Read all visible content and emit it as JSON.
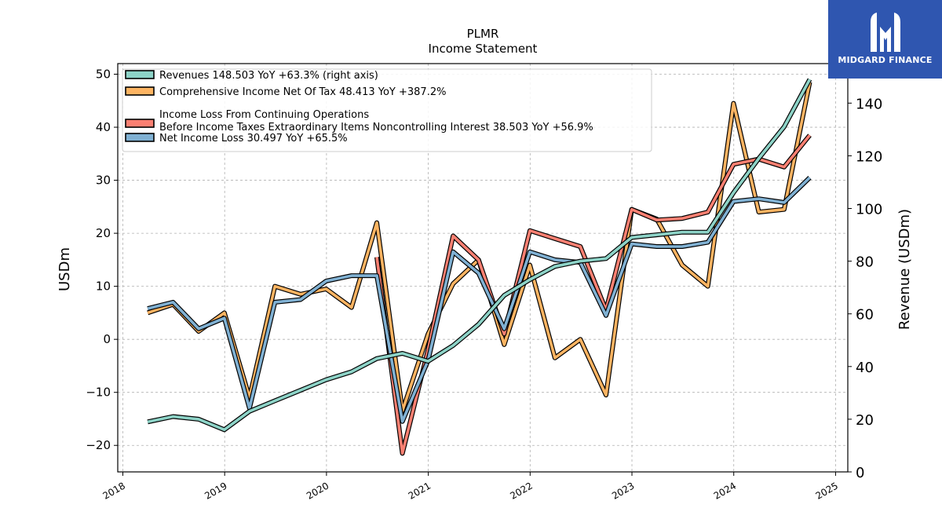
{
  "chart_data": {
    "type": "line",
    "title": "PLMR",
    "subtitle": "Income Statement",
    "ylabel_left": "USDm",
    "ylabel_right": "Revenue (USDm)",
    "ylim_left": [
      -25,
      52
    ],
    "ylim_right": [
      0,
      155
    ],
    "yticks_left": [
      -20,
      -10,
      0,
      10,
      20,
      30,
      40,
      50
    ],
    "yticks_right": [
      0,
      20,
      40,
      60,
      80,
      100,
      120,
      140
    ],
    "yticks_left_labels": [
      "−20",
      "−10",
      "0",
      "10",
      "20",
      "30",
      "40",
      "50"
    ],
    "yticks_right_labels": [
      "0",
      "20",
      "40",
      "60",
      "80",
      "100",
      "120",
      "140"
    ],
    "xlim": [
      2017.95,
      2025.12
    ],
    "xticks": [
      "2018",
      "2019",
      "2020",
      "2021",
      "2022",
      "2023",
      "2024",
      "2025"
    ],
    "grid": true,
    "legend_position": "top-left",
    "series": [
      {
        "name": "Revenues  148.503 YoY +63.3% (right axis)",
        "axis": "right",
        "color": "#8dd3c7",
        "x": [
          "2018-03-31",
          "2018-06-30",
          "2018-09-30",
          "2018-12-31",
          "2019-03-31",
          "2019-06-30",
          "2019-09-30",
          "2019-12-31",
          "2020-03-31",
          "2020-06-30",
          "2020-09-30",
          "2020-12-31",
          "2021-03-31",
          "2021-06-30",
          "2021-09-30",
          "2021-12-31",
          "2022-03-31",
          "2022-06-30",
          "2022-09-30",
          "2022-12-31",
          "2023-03-31",
          "2023-06-30",
          "2023-09-30",
          "2023-12-31",
          "2024-03-31",
          "2024-06-30",
          "2024-09-30"
        ],
        "values": [
          19,
          21,
          20,
          16,
          23,
          27,
          31,
          35,
          38,
          43,
          45,
          42,
          48,
          56,
          67,
          73,
          78,
          80,
          81,
          89,
          90,
          91,
          91,
          106,
          119,
          131,
          149
        ]
      },
      {
        "name": "Comprehensive Income Net Of Tax  48.413 YoY +387.2%",
        "axis": "left",
        "color": "#fdb462",
        "x": [
          "2018-03-31",
          "2018-06-30",
          "2018-09-30",
          "2018-12-31",
          "2019-03-31",
          "2019-06-30",
          "2019-09-30",
          "2019-12-31",
          "2020-03-31",
          "2020-06-30",
          "2020-09-30",
          "2020-12-31",
          "2021-03-31",
          "2021-06-30",
          "2021-09-30",
          "2021-12-31",
          "2022-03-31",
          "2022-06-30",
          "2022-09-30",
          "2022-12-31",
          "2023-03-31",
          "2023-06-30",
          "2023-09-30",
          "2023-12-31",
          "2024-03-31",
          "2024-06-30",
          "2024-09-30"
        ],
        "values": [
          5,
          6.6,
          1.5,
          5,
          -11,
          10,
          8.5,
          9.5,
          6,
          22,
          -13.5,
          1,
          10.5,
          15,
          -1,
          14,
          -3.5,
          0,
          -10.5,
          24.5,
          22.7,
          14,
          10,
          44.5,
          24,
          24.5,
          48.5
        ]
      },
      {
        "name": "Income Loss From Continuing Operations\nBefore Income Taxes Extraordinary Items Noncontrolling Interest  38.503 YoY +56.9%",
        "axis": "left",
        "color": "#fb8072",
        "x": [
          "2020-06-30",
          "2020-09-30",
          "2020-12-31",
          "2021-03-31",
          "2021-06-30",
          "2021-09-30",
          "2021-12-31",
          "2022-03-31",
          "2022-06-30",
          "2022-09-30",
          "2022-12-31",
          "2023-03-31",
          "2023-06-30",
          "2023-09-30",
          "2023-12-31",
          "2024-03-31",
          "2024-06-30",
          "2024-09-30"
        ],
        "values": [
          15.5,
          -21.5,
          -2,
          19.5,
          15,
          1,
          20.5,
          19,
          17.5,
          5.5,
          24.5,
          22.5,
          22.8,
          24,
          33,
          34,
          32.5,
          38.5
        ]
      },
      {
        "name": "Net Income Loss  30.497 YoY +65.5%",
        "axis": "left",
        "color": "#80b1d3",
        "x": [
          "2018-03-31",
          "2018-06-30",
          "2018-09-30",
          "2018-12-31",
          "2019-03-31",
          "2019-06-30",
          "2019-09-30",
          "2019-12-31",
          "2020-03-31",
          "2020-06-30",
          "2020-09-30",
          "2020-12-31",
          "2021-03-31",
          "2021-06-30",
          "2021-09-30",
          "2021-12-31",
          "2022-03-31",
          "2022-06-30",
          "2022-09-30",
          "2022-12-31",
          "2023-03-31",
          "2023-06-30",
          "2023-09-30",
          "2023-12-31",
          "2024-03-31",
          "2024-06-30",
          "2024-09-30"
        ],
        "values": [
          5.8,
          7,
          2,
          4,
          -13,
          7,
          7.5,
          11,
          12,
          12,
          -15.5,
          -4,
          16.5,
          12.5,
          2,
          16.5,
          15,
          14.5,
          4.5,
          18,
          17.5,
          17.5,
          18.3,
          26,
          26.5,
          25.8,
          30.5
        ]
      }
    ]
  },
  "logo": {
    "text": "MIDGARD FINANCE"
  }
}
